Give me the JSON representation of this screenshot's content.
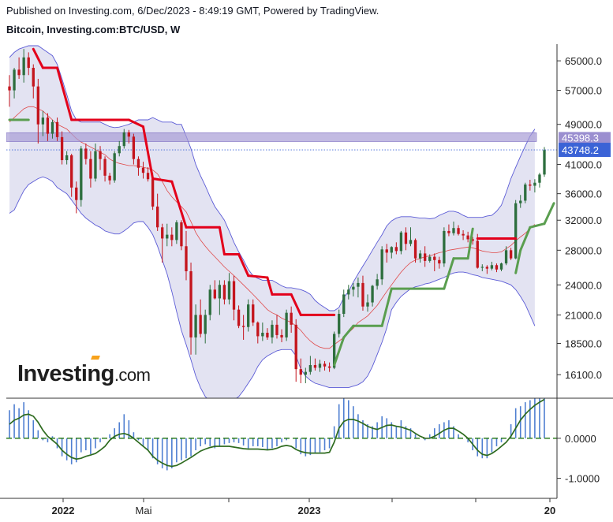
{
  "header": {
    "published": "Published on Investing.com, 6/Dec/2023 - 8:49:19 GMT, Powered by TradingView.",
    "instrument": "Bitcoin, Investing.com:BTC/USD, W"
  },
  "logo": {
    "brand": "Investing",
    "suffix": ".com"
  },
  "colors": {
    "up": "#2d6e3e",
    "down": "#c4151d",
    "supertrend_up": "#5a9e4f",
    "supertrend_down": "#e3001b",
    "band": "#5b5bd6",
    "band_fill": "#d9d9ee",
    "mid_line": "#e04a4a",
    "zone_fill": "#a89cd6",
    "macd_hist": "#4f7fd1",
    "macd_line": "#2e6b1f",
    "current_label": "#3b63d6",
    "zone_label": "#9b8fd0"
  },
  "chart_data": {
    "type": "candlestick",
    "title": "Bitcoin, Investing.com:BTC/USD, W",
    "ylim": [
      14500,
      70000
    ],
    "y_ticks": [
      16100,
      18500,
      21000,
      24000,
      28000,
      32000,
      36000,
      41000,
      49000,
      57000,
      65000
    ],
    "y_tick_labels": [
      "16100.0",
      "18500.0",
      "21000.0",
      "24000.0",
      "28000.0",
      "32000.0",
      "36000.0",
      "41000.0",
      "49000.0",
      "57000.0",
      "65000.0"
    ],
    "x_labels": [
      "2022",
      "Mai",
      "2023",
      "20"
    ],
    "current_price": 43748.2,
    "current_price_label": "43748.2",
    "zone": {
      "low": 45398.3,
      "high": 47200,
      "label": "45398.3"
    },
    "candles_ohlc": [
      [
        58000,
        61000,
        53000,
        57000
      ],
      [
        57000,
        63000,
        55000,
        62500
      ],
      [
        62500,
        66000,
        60000,
        61000
      ],
      [
        61000,
        68500,
        59000,
        66000
      ],
      [
        66000,
        67500,
        61000,
        63000
      ],
      [
        63000,
        64000,
        55000,
        58000
      ],
      [
        58000,
        60000,
        45000,
        49000
      ],
      [
        49000,
        52000,
        46500,
        50500
      ],
      [
        50500,
        51500,
        45500,
        47000
      ],
      [
        47000,
        50000,
        46000,
        49500
      ],
      [
        49500,
        50500,
        45500,
        46300
      ],
      [
        46300,
        47500,
        41000,
        41800
      ],
      [
        41800,
        43500,
        41000,
        42700
      ],
      [
        42700,
        43000,
        35500,
        37000
      ],
      [
        37000,
        38000,
        33000,
        35000
      ],
      [
        35000,
        44500,
        34000,
        44000
      ],
      [
        44000,
        45000,
        41000,
        42000
      ],
      [
        42000,
        43500,
        37000,
        38500
      ],
      [
        38500,
        45000,
        38000,
        43500
      ],
      [
        43500,
        44500,
        40000,
        42000
      ],
      [
        42000,
        42500,
        38000,
        39000
      ],
      [
        39000,
        39500,
        37500,
        38200
      ],
      [
        38200,
        43500,
        37800,
        43100
      ],
      [
        43100,
        45500,
        42500,
        44500
      ],
      [
        44500,
        48000,
        44000,
        47300
      ],
      [
        47300,
        47800,
        45000,
        46400
      ],
      [
        46400,
        47000,
        41000,
        42000
      ],
      [
        42000,
        42500,
        39000,
        40400
      ],
      [
        40400,
        41500,
        38500,
        39500
      ],
      [
        39500,
        40500,
        38000,
        38400
      ],
      [
        38400,
        39500,
        33500,
        34000
      ],
      [
        34000,
        36000,
        30500,
        31000
      ],
      [
        31000,
        31500,
        26500,
        29500
      ],
      [
        29500,
        31500,
        28500,
        30000
      ],
      [
        30000,
        31000,
        28500,
        29300
      ],
      [
        29300,
        32000,
        28800,
        31700
      ],
      [
        31700,
        32000,
        28000,
        28500
      ],
      [
        28500,
        30500,
        24500,
        25500
      ],
      [
        25500,
        26500,
        17600,
        19000
      ],
      [
        19000,
        22000,
        17600,
        21000
      ],
      [
        21000,
        22500,
        19000,
        19300
      ],
      [
        19300,
        21500,
        18500,
        21000
      ],
      [
        21000,
        24000,
        20500,
        23500
      ],
      [
        23500,
        24500,
        22500,
        22600
      ],
      [
        22600,
        24500,
        21000,
        24000
      ],
      [
        24000,
        24500,
        22000,
        22500
      ],
      [
        22500,
        25300,
        22000,
        24400
      ],
      [
        24400,
        25000,
        20500,
        21500
      ],
      [
        21500,
        21900,
        19800,
        20000
      ],
      [
        20000,
        21000,
        18800,
        19900
      ],
      [
        19900,
        22500,
        19500,
        22000
      ],
      [
        22000,
        22500,
        20000,
        20300
      ],
      [
        20300,
        20400,
        18500,
        19100
      ],
      [
        19100,
        20300,
        18700,
        19400
      ],
      [
        19400,
        19800,
        18800,
        19000
      ],
      [
        19000,
        20500,
        18500,
        20100
      ],
      [
        20100,
        21000,
        18900,
        19200
      ],
      [
        19200,
        19700,
        18600,
        19000
      ],
      [
        19000,
        21500,
        18700,
        21200
      ],
      [
        21200,
        21800,
        19400,
        20100
      ],
      [
        20100,
        20600,
        15600,
        16500
      ],
      [
        16500,
        17300,
        15500,
        16100
      ],
      [
        16100,
        16600,
        15500,
        16300
      ],
      [
        16300,
        17500,
        16100,
        16800
      ],
      [
        16800,
        17300,
        16400,
        16600
      ],
      [
        16600,
        17200,
        16300,
        16900
      ],
      [
        16900,
        17100,
        16400,
        16700
      ],
      [
        16700,
        17000,
        16300,
        16600
      ],
      [
        16600,
        19500,
        16500,
        19300
      ],
      [
        19300,
        21500,
        19000,
        21100
      ],
      [
        21100,
        23500,
        20800,
        23000
      ],
      [
        23000,
        24000,
        22500,
        23500
      ],
      [
        23500,
        24200,
        22800,
        23800
      ],
      [
        23800,
        24800,
        22700,
        24200
      ],
      [
        24200,
        25000,
        21400,
        21800
      ],
      [
        21800,
        23000,
        21300,
        22200
      ],
      [
        22200,
        24000,
        21800,
        23900
      ],
      [
        23900,
        25200,
        23500,
        24600
      ],
      [
        24600,
        28500,
        24000,
        28100
      ],
      [
        28100,
        28800,
        26500,
        27700
      ],
      [
        27700,
        28500,
        27000,
        28400
      ],
      [
        28400,
        29000,
        27500,
        27900
      ],
      [
        27900,
        30500,
        27500,
        30300
      ],
      [
        30300,
        31000,
        28000,
        28800
      ],
      [
        28800,
        31000,
        28500,
        29300
      ],
      [
        29300,
        29500,
        26500,
        27000
      ],
      [
        27000,
        28000,
        26500,
        27600
      ],
      [
        27600,
        28500,
        26000,
        26700
      ],
      [
        26700,
        27500,
        26500,
        27200
      ],
      [
        27200,
        27600,
        25500,
        26800
      ],
      [
        26800,
        27200,
        25800,
        26400
      ],
      [
        26400,
        31000,
        26000,
        30500
      ],
      [
        30500,
        31400,
        29800,
        30200
      ],
      [
        30200,
        31800,
        29900,
        30900
      ],
      [
        30900,
        31300,
        29900,
        30100
      ],
      [
        30100,
        30600,
        29300,
        29900
      ],
      [
        29900,
        30400,
        29000,
        29400
      ],
      [
        29400,
        29700,
        28700,
        29200
      ],
      [
        29200,
        30100,
        25800,
        25900
      ],
      [
        25900,
        26300,
        25500,
        26000
      ],
      [
        26000,
        26200,
        25200,
        25800
      ],
      [
        25800,
        26600,
        25600,
        26200
      ],
      [
        26200,
        26400,
        25400,
        25700
      ],
      [
        25700,
        26500,
        25500,
        26400
      ],
      [
        26400,
        28500,
        26200,
        28000
      ],
      [
        28000,
        28300,
        26800,
        27000
      ],
      [
        27000,
        35000,
        26900,
        34500
      ],
      [
        34500,
        35800,
        33800,
        34900
      ],
      [
        34900,
        37800,
        34500,
        37500
      ],
      [
        37500,
        38300,
        36500,
        37300
      ],
      [
        37300,
        38400,
        36200,
        37800
      ],
      [
        37800,
        39500,
        37000,
        39200
      ],
      [
        39200,
        44300,
        38800,
        43700
      ]
    ],
    "bollinger_mid": [
      49500,
      50500,
      51500,
      52500,
      53000,
      53000,
      52500,
      52000,
      51000,
      50000,
      49000,
      48500,
      48000,
      47000,
      46000,
      45300,
      44800,
      44300,
      43800,
      43300,
      42800,
      42000,
      41500,
      41200,
      41000,
      40800,
      40800,
      40700,
      40500,
      40300,
      40000,
      39300,
      38000,
      36500,
      35500,
      34700,
      34000,
      33200,
      31800,
      30300,
      29300,
      28500,
      27800,
      27200,
      26600,
      26000,
      25500,
      25000,
      24500,
      24000,
      23500,
      23000,
      22500,
      22000,
      21500,
      21200,
      21000,
      20700,
      20500,
      20300,
      20000,
      19600,
      19100,
      18700,
      18400,
      18200,
      18100,
      18100,
      18400,
      18700,
      19000,
      19400,
      19800,
      20300,
      20600,
      20900,
      21400,
      21900,
      22600,
      23300,
      24000,
      24700,
      25400,
      26000,
      26500,
      26800,
      27000,
      27200,
      27300,
      27500,
      27700,
      27800,
      28000,
      28100,
      28200,
      28300,
      28400,
      28300,
      28100,
      27900,
      27800,
      27700,
      27700,
      27800,
      28200,
      28600,
      29200,
      29700,
      30200,
      30800,
      31400
    ],
    "bollinger_upper": [
      66000,
      67500,
      68500,
      69000,
      69500,
      69500,
      69500,
      68500,
      67500,
      66500,
      64000,
      60000,
      56000,
      52000,
      50000,
      49500,
      49500,
      49500,
      49500,
      49500,
      49000,
      48500,
      48300,
      48400,
      48700,
      49000,
      49500,
      50000,
      50000,
      50000,
      50500,
      50000,
      49500,
      49500,
      49500,
      49000,
      49000,
      46500,
      44000,
      41000,
      39000,
      37300,
      35500,
      34000,
      33000,
      32000,
      30500,
      29000,
      27800,
      26800,
      25700,
      25000,
      24700,
      24500,
      24500,
      24500,
      24200,
      23900,
      23700,
      23700,
      23600,
      23500,
      23300,
      23000,
      22400,
      22000,
      21700,
      21400,
      21400,
      21700,
      22700,
      23300,
      24300,
      25200,
      26100,
      27000,
      28000,
      29000,
      30000,
      31200,
      31900,
      32300,
      32500,
      32500,
      32500,
      32400,
      32300,
      32300,
      32200,
      32300,
      32700,
      33000,
      33300,
      33300,
      33100,
      32700,
      32400,
      32400,
      32400,
      32400,
      32600,
      32700,
      33300,
      34200,
      36200,
      38500,
      40500,
      42500,
      44500,
      46500,
      48000
    ],
    "bollinger_lower": [
      33000,
      33500,
      35000,
      36500,
      37500,
      38000,
      38500,
      38800,
      38500,
      38000,
      37000,
      36500,
      36000,
      35000,
      34000,
      33000,
      32300,
      31800,
      31300,
      31000,
      30500,
      30300,
      30100,
      30100,
      30500,
      31000,
      31600,
      31800,
      31800,
      31000,
      30000,
      28500,
      26800,
      25200,
      23300,
      21300,
      19600,
      18400,
      17200,
      16000,
      15200,
      14600,
      14300,
      14200,
      14200,
      14200,
      14300,
      14400,
      14600,
      15000,
      15500,
      16000,
      16700,
      17200,
      17500,
      17700,
      17900,
      18000,
      18000,
      18000,
      17500,
      16500,
      16000,
      15700,
      15500,
      15400,
      15300,
      15200,
      15200,
      15200,
      15200,
      15200,
      15300,
      15400,
      15600,
      16000,
      16700,
      17600,
      18600,
      19800,
      21500,
      22200,
      22800,
      23200,
      23600,
      23800,
      23900,
      24100,
      24200,
      24400,
      24600,
      24800,
      25100,
      25300,
      25400,
      25400,
      25300,
      25100,
      25000,
      24800,
      24700,
      24600,
      24500,
      24400,
      24200,
      24000,
      23500,
      22800,
      22000,
      21000,
      20000
    ],
    "supertrend": [
      [
        0,
        50000,
        "up"
      ],
      [
        4,
        50000,
        "up"
      ],
      [
        5,
        68500,
        "down"
      ],
      [
        7,
        63000,
        "down"
      ],
      [
        10,
        63000,
        "down"
      ],
      [
        13,
        50000,
        "down"
      ],
      [
        25,
        50000,
        "down"
      ],
      [
        28,
        48500,
        "down"
      ],
      [
        30,
        38500,
        "down"
      ],
      [
        34,
        38000,
        "down"
      ],
      [
        37,
        31000,
        "down"
      ],
      [
        44,
        31000,
        "down"
      ],
      [
        45,
        27500,
        "down"
      ],
      [
        48,
        27500,
        "down"
      ],
      [
        50,
        25000,
        "down"
      ],
      [
        54,
        24800,
        "down"
      ],
      [
        55,
        23000,
        "down"
      ],
      [
        59,
        23000,
        "down"
      ],
      [
        61,
        21000,
        "down"
      ],
      [
        68,
        21000,
        "down"
      ],
      [
        68,
        16800,
        "up"
      ],
      [
        70,
        19000,
        "up"
      ],
      [
        72,
        20000,
        "up"
      ],
      [
        78,
        20000,
        "up"
      ],
      [
        80,
        23600,
        "up"
      ],
      [
        91,
        23600,
        "up"
      ],
      [
        93,
        27000,
        "up"
      ],
      [
        96,
        27000,
        "up"
      ],
      [
        97,
        30800,
        "up"
      ],
      [
        98,
        29500,
        "down"
      ],
      [
        106,
        29500,
        "down"
      ],
      [
        106,
        25300,
        "up"
      ],
      [
        107,
        28000,
        "up"
      ],
      [
        109,
        31000,
        "up"
      ],
      [
        112,
        31500,
        "up"
      ],
      [
        114,
        34500,
        "up"
      ]
    ],
    "macd_hist": [
      0.7,
      0.85,
      0.75,
      0.9,
      0.7,
      0.45,
      0.2,
      -0.05,
      -0.1,
      0.05,
      -0.25,
      -0.45,
      -0.55,
      -0.65,
      -0.6,
      -0.35,
      -0.3,
      -0.4,
      -0.25,
      -0.1,
      0.0,
      0.1,
      0.25,
      0.4,
      0.6,
      0.45,
      0.15,
      -0.05,
      -0.2,
      -0.3,
      -0.5,
      -0.65,
      -0.75,
      -0.8,
      -0.75,
      -0.6,
      -0.55,
      -0.5,
      -0.45,
      -0.3,
      -0.2,
      -0.15,
      -0.2,
      -0.25,
      -0.2,
      -0.15,
      -0.12,
      -0.1,
      -0.12,
      -0.18,
      -0.25,
      -0.2,
      -0.2,
      -0.22,
      -0.3,
      -0.25,
      -0.2,
      -0.1,
      -0.05,
      0.0,
      -0.25,
      -0.4,
      -0.45,
      -0.42,
      -0.38,
      -0.35,
      -0.3,
      -0.25,
      0.3,
      0.85,
      1.0,
      0.95,
      0.8,
      0.6,
      0.45,
      0.35,
      0.3,
      0.4,
      0.55,
      0.5,
      0.4,
      0.3,
      0.45,
      0.3,
      0.25,
      0.1,
      0.0,
      -0.05,
      0.1,
      0.25,
      0.35,
      0.4,
      0.45,
      0.3,
      0.1,
      0.0,
      -0.1,
      -0.3,
      -0.45,
      -0.5,
      -0.5,
      -0.35,
      -0.2,
      -0.1,
      0.0,
      0.35,
      0.75,
      0.8,
      0.9,
      0.95,
      1.0,
      1.0,
      1.0
    ],
    "macd_line": [
      0.35,
      0.45,
      0.5,
      0.58,
      0.6,
      0.55,
      0.4,
      0.2,
      0.05,
      -0.05,
      -0.15,
      -0.3,
      -0.4,
      -0.48,
      -0.52,
      -0.5,
      -0.45,
      -0.42,
      -0.38,
      -0.3,
      -0.2,
      -0.05,
      0.05,
      0.1,
      0.12,
      0.08,
      0.0,
      -0.1,
      -0.2,
      -0.3,
      -0.45,
      -0.55,
      -0.62,
      -0.68,
      -0.7,
      -0.68,
      -0.62,
      -0.55,
      -0.48,
      -0.4,
      -0.32,
      -0.27,
      -0.23,
      -0.2,
      -0.2,
      -0.2,
      -0.2,
      -0.22,
      -0.24,
      -0.26,
      -0.27,
      -0.27,
      -0.27,
      -0.28,
      -0.29,
      -0.28,
      -0.25,
      -0.2,
      -0.18,
      -0.2,
      -0.28,
      -0.33,
      -0.36,
      -0.37,
      -0.37,
      -0.37,
      -0.37,
      -0.35,
      -0.1,
      0.25,
      0.42,
      0.47,
      0.47,
      0.43,
      0.37,
      0.3,
      0.25,
      0.22,
      0.27,
      0.32,
      0.33,
      0.3,
      0.28,
      0.24,
      0.2,
      0.12,
      0.05,
      0.0,
      0.0,
      0.05,
      0.12,
      0.2,
      0.25,
      0.25,
      0.18,
      0.1,
      0.0,
      -0.15,
      -0.3,
      -0.4,
      -0.43,
      -0.38,
      -0.3,
      -0.2,
      -0.1,
      0.05,
      0.25,
      0.45,
      0.6,
      0.72,
      0.82,
      0.9,
      0.97
    ],
    "macd_ylim": [
      -1.5,
      1.0
    ],
    "macd_ticks": [
      0.0,
      -1.0
    ],
    "macd_tick_labels": [
      "0.0000",
      "-1.0000"
    ]
  }
}
